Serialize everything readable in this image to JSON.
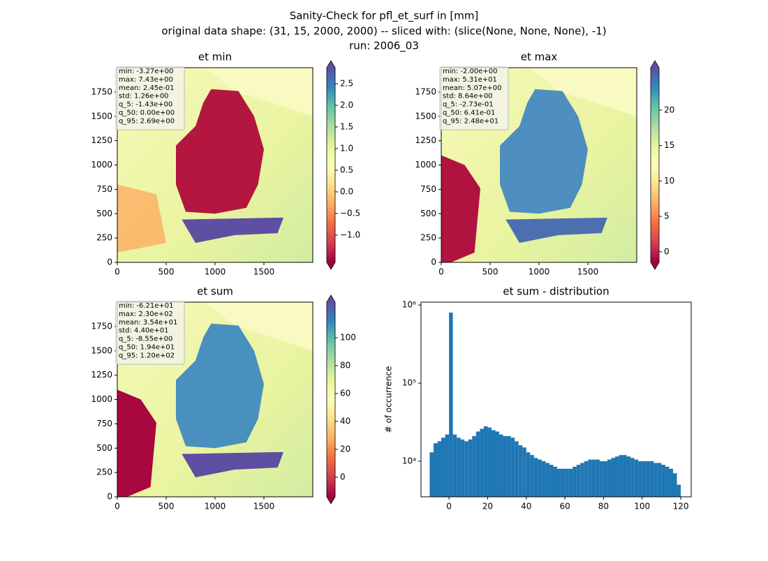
{
  "figure_title": [
    "Sanity-Check for pfl_et_surf in [mm]",
    "original data shape: (31, 15, 2000, 2000) -- sliced with: (slice(None, None, None), -1)",
    "run: 2006_03"
  ],
  "chart_data": [
    {
      "type": "image",
      "title": "et min",
      "xlim": [
        0,
        2000
      ],
      "ylim": [
        0,
        2000
      ],
      "xticks": [
        0,
        500,
        1000,
        1500
      ],
      "yticks": [
        0,
        250,
        500,
        750,
        1000,
        1250,
        1500,
        1750
      ],
      "colorbar": {
        "lim": [
          -1.63,
          2.87
        ],
        "cmap": "Spectral",
        "ticks": [
          {
            "value": -1,
            "label": "−1.0"
          },
          {
            "value": -0.5,
            "label": "−0.5"
          },
          {
            "value": 0,
            "label": "0.0"
          },
          0.5,
          {
            "value": 1,
            "label": "1.0"
          },
          1.5,
          {
            "value": 2,
            "label": "2.0"
          },
          2.5
        ]
      },
      "stats": [
        "min: -3.27e+00",
        "max: 7.43e+00",
        "mean: 2.45e-01",
        "std: 1.26e+00",
        "q_5: -1.43e+00",
        "q_50: 0.00e+00",
        "q_95: 2.69e+00"
      ]
    },
    {
      "type": "image",
      "title": "et max",
      "xlim": [
        0,
        2000
      ],
      "ylim": [
        0,
        2000
      ],
      "xticks": [
        0,
        500,
        1000,
        1500
      ],
      "yticks": [
        0,
        250,
        500,
        750,
        1000,
        1250,
        1500,
        1750
      ],
      "colorbar": {
        "lim": [
          -1.5,
          26
        ],
        "cmap": "Spectral",
        "ticks": [
          0,
          5,
          10,
          15,
          20
        ]
      },
      "stats": [
        "min: -2.00e+00",
        "max: 5.31e+01",
        "mean: 5.07e+00",
        "std: 8.64e+00",
        "q_5: -2.73e-01",
        "q_50: 6.41e-01",
        "q_95: 2.48e+01"
      ]
    },
    {
      "type": "image",
      "title": "et sum",
      "xlim": [
        0,
        2000
      ],
      "ylim": [
        0,
        2000
      ],
      "xticks": [
        0,
        500,
        1000,
        1500
      ],
      "yticks": [
        0,
        250,
        500,
        750,
        1000,
        1250,
        1500,
        1750
      ],
      "colorbar": {
        "lim": [
          -14,
          125.5
        ],
        "cmap": "Spectral",
        "ticks": [
          0,
          20,
          40,
          60,
          80,
          100
        ]
      },
      "stats": [
        "min: -6.21e+01",
        "max: 2.30e+02",
        "mean: 3.54e+01",
        "std: 4.40e+01",
        "q_5: -8.55e+00",
        "q_50: 1.94e+01",
        "q_95: 1.20e+02"
      ]
    },
    {
      "type": "histogram",
      "title": "et sum - distribution",
      "y_label": "# of occurrence",
      "color": "#1f77b4",
      "log_y": true,
      "xlim": [
        -14.5,
        125.4
      ],
      "ylim": [
        3500,
        1090000
      ],
      "xticks": [
        0,
        20,
        40,
        60,
        80,
        100,
        120
      ],
      "yticks": [
        {
          "value": 10000,
          "label": "10⁴"
        },
        {
          "value": 100000,
          "label": "10⁵"
        },
        {
          "value": 1000000,
          "label": "10⁶"
        }
      ],
      "bins": [
        -10,
        -8,
        -6,
        -4,
        -2,
        0,
        2,
        4,
        6,
        8,
        10,
        12,
        14,
        16,
        18,
        20,
        22,
        24,
        26,
        28,
        30,
        32,
        34,
        36,
        38,
        40,
        42,
        44,
        46,
        48,
        50,
        52,
        54,
        56,
        58,
        60,
        62,
        64,
        66,
        68,
        70,
        72,
        74,
        76,
        78,
        80,
        82,
        84,
        86,
        88,
        90,
        92,
        94,
        96,
        98,
        100,
        102,
        104,
        106,
        108,
        110,
        112,
        114,
        116,
        118,
        120
      ],
      "values": [
        13000,
        17000,
        18000,
        20000,
        22000,
        800000,
        22000,
        20000,
        19000,
        18000,
        19000,
        21000,
        24000,
        26000,
        28000,
        27000,
        25000,
        24000,
        22000,
        21000,
        21000,
        20000,
        18000,
        16000,
        15000,
        13000,
        12000,
        11000,
        10500,
        10000,
        9500,
        9000,
        8500,
        8000,
        8000,
        8000,
        8000,
        8500,
        9000,
        9500,
        10000,
        10500,
        10500,
        10500,
        10000,
        10000,
        10500,
        11000,
        11500,
        12000,
        12000,
        11500,
        11000,
        10500,
        10000,
        10000,
        10000,
        10000,
        9500,
        9500,
        9000,
        8500,
        8000,
        7000,
        5000
      ]
    }
  ]
}
